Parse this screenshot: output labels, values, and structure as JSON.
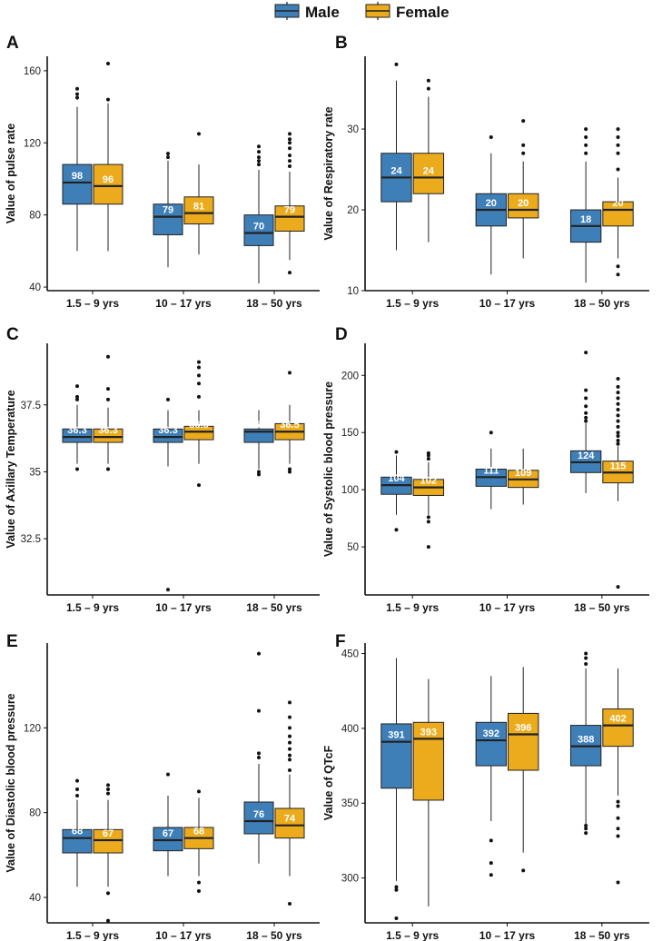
{
  "legend": {
    "items": [
      {
        "label": "Male",
        "color": "#3F7FB8"
      },
      {
        "label": "Female",
        "color": "#EBAB1C"
      }
    ]
  },
  "categories": [
    "1.5 – 9 yrs",
    "10 – 17 yrs",
    "18 – 50 yrs"
  ],
  "chart_data": [
    {
      "type": "box",
      "panel": "A",
      "ylabel": "Value of pulse rate",
      "ylim": [
        38,
        168
      ],
      "yticks": [
        40,
        80,
        120,
        160
      ],
      "series": [
        {
          "name": "Male",
          "color": "#3F7FB8",
          "boxes": [
            {
              "category": "1.5 – 9 yrs",
              "min": 60,
              "q1": 86,
              "median": 98,
              "q3": 108,
              "max": 140,
              "label": "98",
              "outliers": [
                145,
                147,
                150
              ]
            },
            {
              "category": "10 – 17 yrs",
              "min": 51,
              "q1": 69,
              "median": 79,
              "q3": 86,
              "max": 110,
              "label": "79",
              "outliers": [
                112,
                114
              ]
            },
            {
              "category": "18 – 50 yrs",
              "min": 42,
              "q1": 63,
              "median": 70,
              "q3": 80,
              "max": 105,
              "label": "70",
              "outliers": [
                108,
                110,
                112,
                115,
                118
              ]
            }
          ]
        },
        {
          "name": "Female",
          "color": "#EBAB1C",
          "boxes": [
            {
              "category": "1.5 – 9 yrs",
              "min": 60,
              "q1": 86,
              "median": 96,
              "q3": 108,
              "max": 142,
              "label": "96",
              "outliers": [
                144,
                164
              ]
            },
            {
              "category": "10 – 17 yrs",
              "min": 58,
              "q1": 75,
              "median": 81,
              "q3": 90,
              "max": 108,
              "label": "81",
              "outliers": [
                125
              ]
            },
            {
              "category": "18 – 50 yrs",
              "min": 55,
              "q1": 71,
              "median": 79,
              "q3": 85,
              "max": 104,
              "label": "79",
              "outliers": [
                48,
                107,
                110,
                113,
                117,
                120,
                122,
                125
              ]
            }
          ]
        }
      ]
    },
    {
      "type": "box",
      "panel": "B",
      "ylabel": "Value of Respiratory rate",
      "ylim": [
        10,
        39
      ],
      "yticks": [
        10,
        20,
        30
      ],
      "series": [
        {
          "name": "Male",
          "color": "#3F7FB8",
          "boxes": [
            {
              "category": "1.5 – 9 yrs",
              "min": 15,
              "q1": 21,
              "median": 24,
              "q3": 27,
              "max": 36,
              "label": "24",
              "outliers": [
                38
              ]
            },
            {
              "category": "10 – 17 yrs",
              "min": 12,
              "q1": 18,
              "median": 20,
              "q3": 22,
              "max": 27,
              "label": "20",
              "outliers": [
                29
              ]
            },
            {
              "category": "18 – 50 yrs",
              "min": 11,
              "q1": 16,
              "median": 18,
              "q3": 20,
              "max": 26,
              "label": "18",
              "outliers": [
                27,
                28,
                29,
                30
              ]
            }
          ]
        },
        {
          "name": "Female",
          "color": "#EBAB1C",
          "boxes": [
            {
              "category": "1.5 – 9 yrs",
              "min": 16,
              "q1": 22,
              "median": 24,
              "q3": 27,
              "max": 34,
              "label": "24",
              "outliers": [
                35,
                36
              ]
            },
            {
              "category": "10 – 17 yrs",
              "min": 14,
              "q1": 19,
              "median": 20,
              "q3": 22,
              "max": 26,
              "label": "20",
              "outliers": [
                27,
                28,
                31
              ]
            },
            {
              "category": "18 – 50 yrs",
              "min": 14,
              "q1": 18,
              "median": 20,
              "q3": 21,
              "max": 24,
              "label": "20",
              "outliers": [
                12,
                13,
                25,
                27,
                28,
                29,
                30
              ]
            }
          ]
        }
      ]
    },
    {
      "type": "box",
      "panel": "C",
      "ylabel": "Value of Axillary Temperature",
      "ylim": [
        30.4,
        39.8
      ],
      "yticks": [
        32.5,
        35.0,
        37.5
      ],
      "series": [
        {
          "name": "Male",
          "color": "#3F7FB8",
          "boxes": [
            {
              "category": "1.5 – 9 yrs",
              "min": 35.3,
              "q1": 36.1,
              "median": 36.3,
              "q3": 36.6,
              "max": 37.5,
              "label": "36.3",
              "outliers": [
                35.1,
                37.7,
                37.8,
                38.2
              ]
            },
            {
              "category": "10 – 17 yrs",
              "min": 35.2,
              "q1": 36.1,
              "median": 36.3,
              "q3": 36.6,
              "max": 37.3,
              "label": "36.3",
              "outliers": [
                30.6,
                37.7
              ]
            },
            {
              "category": "18 – 50 yrs",
              "min": 35.1,
              "q1": 36.1,
              "median": 36.5,
              "q3": 36.6,
              "max": 37.3,
              "label": "36.5",
              "outliers": [
                34.9,
                35.0
              ]
            }
          ]
        },
        {
          "name": "Female",
          "color": "#EBAB1C",
          "boxes": [
            {
              "category": "1.5 – 9 yrs",
              "min": 35.3,
              "q1": 36.1,
              "median": 36.3,
              "q3": 36.6,
              "max": 37.4,
              "label": "36.3",
              "outliers": [
                35.1,
                37.7,
                38.1,
                39.3
              ]
            },
            {
              "category": "10 – 17 yrs",
              "min": 35.3,
              "q1": 36.2,
              "median": 36.5,
              "q3": 36.7,
              "max": 37.3,
              "label": "36.5",
              "outliers": [
                34.5,
                37.8,
                38.3,
                38.6,
                38.9,
                39.1
              ]
            },
            {
              "category": "18 – 50 yrs",
              "min": 35.3,
              "q1": 36.2,
              "median": 36.5,
              "q3": 36.8,
              "max": 37.5,
              "label": "36.5",
              "outliers": [
                35.0,
                35.1,
                38.7
              ]
            }
          ]
        }
      ]
    },
    {
      "type": "box",
      "panel": "D",
      "ylabel": "Value of Systolic blood pressure",
      "ylim": [
        8,
        228
      ],
      "yticks": [
        50,
        100,
        150,
        200
      ],
      "series": [
        {
          "name": "Male",
          "color": "#3F7FB8",
          "boxes": [
            {
              "category": "1.5 – 9 yrs",
              "min": 78,
              "q1": 96,
              "median": 104,
              "q3": 111,
              "max": 130,
              "label": "104",
              "outliers": [
                65,
                133
              ]
            },
            {
              "category": "10 – 17 yrs",
              "min": 83,
              "q1": 103,
              "median": 111,
              "q3": 118,
              "max": 136,
              "label": "111",
              "outliers": [
                150
              ]
            },
            {
              "category": "18 – 50 yrs",
              "min": 97,
              "q1": 115,
              "median": 124,
              "q3": 134,
              "max": 158,
              "label": "124",
              "outliers": [
                160,
                163,
                167,
                173,
                180,
                187,
                220
              ]
            }
          ]
        },
        {
          "name": "Female",
          "color": "#EBAB1C",
          "boxes": [
            {
              "category": "1.5 – 9 yrs",
              "min": 78,
              "q1": 95,
              "median": 102,
              "q3": 109,
              "max": 124,
              "label": "102",
              "outliers": [
                50,
                72,
                76,
                127,
                130,
                132
              ]
            },
            {
              "category": "10 – 17 yrs",
              "min": 87,
              "q1": 102,
              "median": 109,
              "q3": 117,
              "max": 136,
              "label": "109",
              "outliers": []
            },
            {
              "category": "18 – 50 yrs",
              "min": 90,
              "q1": 106,
              "median": 115,
              "q3": 125,
              "max": 138,
              "label": "115",
              "outliers": [
                15,
                140,
                143,
                147,
                150,
                155,
                160,
                165,
                170,
                175,
                180,
                185,
                190,
                197
              ]
            }
          ]
        }
      ]
    },
    {
      "type": "box",
      "panel": "E",
      "ylabel": "Value of Diastolic blood pressure",
      "ylim": [
        28,
        160
      ],
      "yticks": [
        40,
        80,
        120
      ],
      "series": [
        {
          "name": "Male",
          "color": "#3F7FB8",
          "boxes": [
            {
              "category": "1.5 – 9 yrs",
              "min": 45,
              "q1": 61,
              "median": 68,
              "q3": 72,
              "max": 86,
              "label": "68",
              "outliers": [
                88,
                91,
                95
              ]
            },
            {
              "category": "10 – 17 yrs",
              "min": 50,
              "q1": 62,
              "median": 67,
              "q3": 73,
              "max": 88,
              "label": "67",
              "outliers": [
                98
              ]
            },
            {
              "category": "18 – 50 yrs",
              "min": 56,
              "q1": 70,
              "median": 76,
              "q3": 85,
              "max": 103,
              "label": "76",
              "outliers": [
                106,
                108,
                128,
                155
              ]
            }
          ]
        },
        {
          "name": "Female",
          "color": "#EBAB1C",
          "boxes": [
            {
              "category": "1.5 – 9 yrs",
              "min": 45,
              "q1": 61,
              "median": 67,
              "q3": 72,
              "max": 86,
              "label": "67",
              "outliers": [
                29,
                42,
                89,
                91,
                93
              ]
            },
            {
              "category": "10 – 17 yrs",
              "min": 50,
              "q1": 63,
              "median": 68,
              "q3": 73,
              "max": 87,
              "label": "68",
              "outliers": [
                43,
                47,
                90
              ]
            },
            {
              "category": "18 – 50 yrs",
              "min": 50,
              "q1": 68,
              "median": 74,
              "q3": 82,
              "max": 98,
              "label": "74",
              "outliers": [
                37,
                100,
                105,
                107,
                110,
                113,
                116,
                120,
                125,
                132
              ]
            }
          ]
        }
      ]
    },
    {
      "type": "box",
      "panel": "F",
      "ylabel": "Value of QTcF",
      "ylim": [
        270,
        457
      ],
      "yticks": [
        300,
        350,
        400,
        450
      ],
      "series": [
        {
          "name": "Male",
          "color": "#3F7FB8",
          "boxes": [
            {
              "category": "1.5 – 9 yrs",
              "min": 298,
              "q1": 360,
              "median": 391,
              "q3": 403,
              "max": 447,
              "label": "391",
              "outliers": [
                273,
                292,
                294
              ]
            },
            {
              "category": "10 – 17 yrs",
              "min": 338,
              "q1": 375,
              "median": 392,
              "q3": 404,
              "max": 435,
              "label": "392",
              "outliers": [
                302,
                310,
                325
              ]
            },
            {
              "category": "18 – 50 yrs",
              "min": 336,
              "q1": 375,
              "median": 388,
              "q3": 402,
              "max": 440,
              "label": "388",
              "outliers": [
                330,
                333,
                335,
                443,
                447,
                450
              ]
            }
          ]
        },
        {
          "name": "Female",
          "color": "#EBAB1C",
          "boxes": [
            {
              "category": "1.5 – 9 yrs",
              "min": 281,
              "q1": 352,
              "median": 393,
              "q3": 404,
              "max": 433,
              "label": "393",
              "outliers": []
            },
            {
              "category": "10 – 17 yrs",
              "min": 317,
              "q1": 372,
              "median": 396,
              "q3": 410,
              "max": 441,
              "label": "396",
              "outliers": [
                305
              ]
            },
            {
              "category": "18 – 50 yrs",
              "min": 355,
              "q1": 388,
              "median": 402,
              "q3": 413,
              "max": 440,
              "label": "402",
              "outliers": [
                297,
                328,
                333,
                340,
                348,
                351
              ]
            }
          ]
        }
      ]
    }
  ]
}
